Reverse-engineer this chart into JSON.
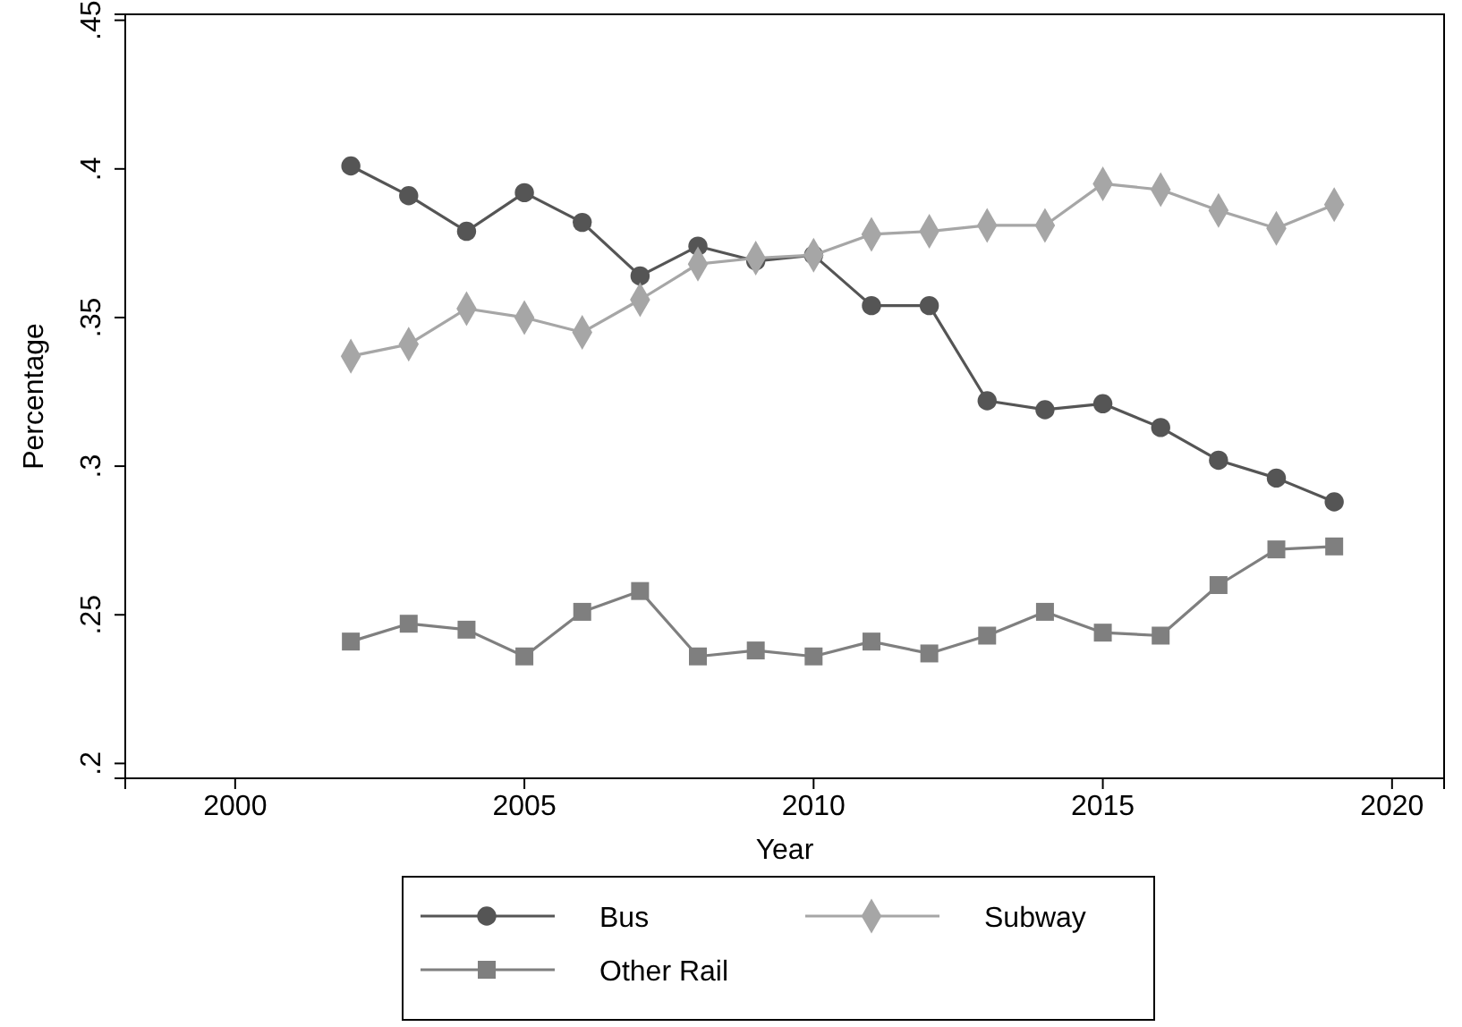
{
  "chart_data": {
    "type": "line",
    "xlabel": "Year",
    "ylabel": "Percentage",
    "x": [
      2002,
      2003,
      2004,
      2005,
      2006,
      2007,
      2008,
      2009,
      2010,
      2011,
      2012,
      2013,
      2014,
      2015,
      2016,
      2017,
      2018,
      2019
    ],
    "series": [
      {
        "name": "Bus",
        "color": "#555555",
        "marker": "circle",
        "values": [
          0.401,
          0.391,
          0.379,
          0.392,
          0.382,
          0.364,
          0.374,
          0.369,
          0.371,
          0.354,
          0.354,
          0.322,
          0.319,
          0.321,
          0.313,
          0.302,
          0.296,
          0.288
        ]
      },
      {
        "name": "Subway",
        "color": "#a6a6a6",
        "marker": "diamond",
        "values": [
          0.337,
          0.341,
          0.353,
          0.35,
          0.345,
          0.356,
          0.368,
          0.37,
          0.371,
          0.378,
          0.379,
          0.381,
          0.381,
          0.395,
          0.393,
          0.386,
          0.38,
          0.388
        ]
      },
      {
        "name": "Other Rail",
        "color": "#7f7f7f",
        "marker": "square",
        "values": [
          0.241,
          0.247,
          0.245,
          0.236,
          0.251,
          0.258,
          0.236,
          0.238,
          0.236,
          0.241,
          0.237,
          0.243,
          0.251,
          0.244,
          0.243,
          0.26,
          0.272,
          0.273
        ]
      }
    ],
    "xlim": [
      1998.1,
      2020.9
    ],
    "xticks": [
      2000,
      2005,
      2010,
      2015,
      2020
    ],
    "ylim": [
      0.195,
      0.452
    ],
    "yticks": [
      {
        "value": 0.2,
        "label": ".2"
      },
      {
        "value": 0.25,
        "label": ".25"
      },
      {
        "value": 0.3,
        "label": ".3"
      },
      {
        "value": 0.35,
        "label": ".35"
      },
      {
        "value": 0.4,
        "label": ".4"
      },
      {
        "value": 0.45,
        "label": ".45"
      }
    ],
    "grid": false,
    "legend": "bottom",
    "line_style": "solid"
  }
}
